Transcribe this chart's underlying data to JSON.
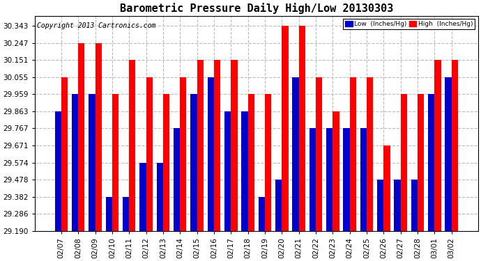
{
  "title": "Barometric Pressure Daily High/Low 20130303",
  "copyright": "Copyright 2013 Cartronics.com",
  "dates": [
    "02/07",
    "02/08",
    "02/09",
    "02/10",
    "02/11",
    "02/12",
    "02/13",
    "02/14",
    "02/15",
    "02/16",
    "02/17",
    "02/18",
    "02/19",
    "02/20",
    "02/21",
    "02/22",
    "02/23",
    "02/24",
    "02/25",
    "02/26",
    "02/27",
    "02/28",
    "03/01",
    "03/02"
  ],
  "high_values": [
    30.055,
    30.247,
    30.247,
    29.959,
    30.151,
    30.055,
    29.959,
    30.055,
    30.151,
    30.151,
    30.151,
    29.959,
    29.959,
    30.343,
    30.343,
    30.055,
    29.863,
    30.055,
    30.055,
    29.671,
    29.959,
    29.959,
    30.151,
    30.151
  ],
  "low_values": [
    29.863,
    29.959,
    29.959,
    29.382,
    29.382,
    29.574,
    29.574,
    29.767,
    29.959,
    30.055,
    29.863,
    29.863,
    29.382,
    29.478,
    30.055,
    29.767,
    29.767,
    29.767,
    29.767,
    29.478,
    29.478,
    29.478,
    29.959,
    30.055
  ],
  "ymin": 29.19,
  "ymax": 30.4,
  "ytick_min": 29.19,
  "ytick_max": 30.343,
  "ytick_step": 0.096,
  "yticks": [
    29.19,
    29.286,
    29.382,
    29.478,
    29.574,
    29.671,
    29.767,
    29.863,
    29.959,
    30.055,
    30.151,
    30.247,
    30.343
  ],
  "bar_color_high": "#ff0000",
  "bar_color_low": "#0000cc",
  "bg_color": "#ffffff",
  "plot_bg_color": "#ffffff",
  "grid_color": "#bbbbbb",
  "title_fontsize": 11,
  "tick_fontsize": 7.5,
  "copyright_fontsize": 7,
  "legend_label_low": "Low  (Inches/Hg)",
  "legend_label_high": "High  (Inches/Hg)",
  "bar_width": 0.38
}
